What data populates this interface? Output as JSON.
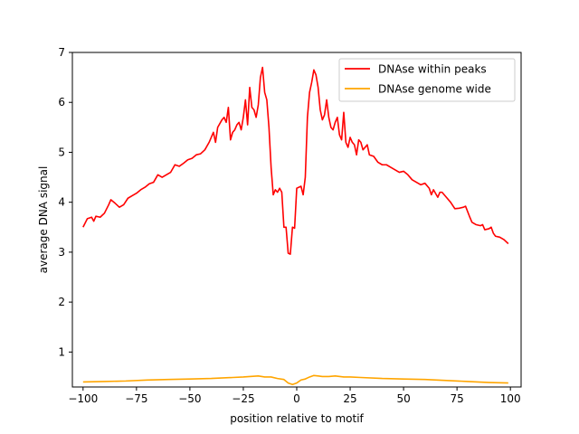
{
  "chart_data": {
    "type": "line",
    "title": "",
    "xlabel": "position relative to motif",
    "ylabel": "average DNA signal",
    "xlim": [
      -105,
      105
    ],
    "ylim": [
      0.3,
      7
    ],
    "xticks": [
      -100,
      -75,
      -50,
      -25,
      0,
      25,
      50,
      75,
      100
    ],
    "xtick_labels": [
      "−100",
      "−75",
      "−50",
      "−25",
      "0",
      "25",
      "50",
      "75",
      "100"
    ],
    "yticks": [
      1,
      2,
      3,
      4,
      5,
      6,
      7
    ],
    "ytick_labels": [
      "1",
      "2",
      "3",
      "4",
      "5",
      "6",
      "7"
    ],
    "grid": false,
    "legend_position": "top-right",
    "series": [
      {
        "name": "DNAse within peaks",
        "color": "#ff0000",
        "points": [
          [
            -100,
            3.5
          ],
          [
            -98,
            3.67
          ],
          [
            -96,
            3.7
          ],
          [
            -95,
            3.62
          ],
          [
            -94,
            3.72
          ],
          [
            -92,
            3.7
          ],
          [
            -90,
            3.78
          ],
          [
            -88,
            3.95
          ],
          [
            -87,
            4.05
          ],
          [
            -85,
            3.98
          ],
          [
            -83,
            3.9
          ],
          [
            -81,
            3.95
          ],
          [
            -79,
            4.08
          ],
          [
            -77,
            4.13
          ],
          [
            -75,
            4.18
          ],
          [
            -73,
            4.25
          ],
          [
            -71,
            4.3
          ],
          [
            -69,
            4.37
          ],
          [
            -67,
            4.4
          ],
          [
            -65,
            4.55
          ],
          [
            -63,
            4.5
          ],
          [
            -61,
            4.55
          ],
          [
            -59,
            4.6
          ],
          [
            -57,
            4.75
          ],
          [
            -55,
            4.72
          ],
          [
            -53,
            4.78
          ],
          [
            -51,
            4.85
          ],
          [
            -49,
            4.88
          ],
          [
            -47,
            4.95
          ],
          [
            -45,
            4.97
          ],
          [
            -43,
            5.05
          ],
          [
            -41,
            5.2
          ],
          [
            -39,
            5.4
          ],
          [
            -38,
            5.2
          ],
          [
            -37,
            5.5
          ],
          [
            -35,
            5.65
          ],
          [
            -34,
            5.7
          ],
          [
            -33,
            5.6
          ],
          [
            -32,
            5.9
          ],
          [
            -31,
            5.25
          ],
          [
            -30,
            5.4
          ],
          [
            -29,
            5.45
          ],
          [
            -28,
            5.55
          ],
          [
            -27,
            5.6
          ],
          [
            -26,
            5.45
          ],
          [
            -25,
            5.7
          ],
          [
            -24,
            6.05
          ],
          [
            -23,
            5.55
          ],
          [
            -22,
            6.3
          ],
          [
            -21,
            5.9
          ],
          [
            -20,
            5.85
          ],
          [
            -19,
            5.7
          ],
          [
            -18,
            5.95
          ],
          [
            -17,
            6.5
          ],
          [
            -16,
            6.7
          ],
          [
            -15,
            6.2
          ],
          [
            -14,
            6.05
          ],
          [
            -13,
            5.5
          ],
          [
            -12,
            4.7
          ],
          [
            -11,
            4.15
          ],
          [
            -10,
            4.25
          ],
          [
            -9,
            4.2
          ],
          [
            -8,
            4.28
          ],
          [
            -7,
            4.2
          ],
          [
            -6,
            3.5
          ],
          [
            -5,
            3.5
          ],
          [
            -4,
            2.98
          ],
          [
            -3,
            2.96
          ],
          [
            -2,
            3.5
          ],
          [
            -1,
            3.48
          ],
          [
            0,
            4.28
          ],
          [
            1,
            4.3
          ],
          [
            2,
            4.32
          ],
          [
            3,
            4.15
          ],
          [
            4,
            4.5
          ],
          [
            5,
            5.7
          ],
          [
            6,
            6.2
          ],
          [
            7,
            6.4
          ],
          [
            8,
            6.65
          ],
          [
            9,
            6.55
          ],
          [
            10,
            6.3
          ],
          [
            11,
            5.85
          ],
          [
            12,
            5.65
          ],
          [
            13,
            5.75
          ],
          [
            14,
            6.05
          ],
          [
            15,
            5.7
          ],
          [
            16,
            5.5
          ],
          [
            17,
            5.45
          ],
          [
            18,
            5.6
          ],
          [
            19,
            5.7
          ],
          [
            20,
            5.35
          ],
          [
            21,
            5.25
          ],
          [
            22,
            5.8
          ],
          [
            23,
            5.2
          ],
          [
            24,
            5.1
          ],
          [
            25,
            5.3
          ],
          [
            26,
            5.2
          ],
          [
            27,
            5.15
          ],
          [
            28,
            4.95
          ],
          [
            29,
            5.25
          ],
          [
            30,
            5.2
          ],
          [
            31,
            5.05
          ],
          [
            32,
            5.1
          ],
          [
            33,
            5.15
          ],
          [
            34,
            4.95
          ],
          [
            36,
            4.92
          ],
          [
            38,
            4.8
          ],
          [
            40,
            4.75
          ],
          [
            42,
            4.75
          ],
          [
            44,
            4.7
          ],
          [
            46,
            4.65
          ],
          [
            48,
            4.6
          ],
          [
            50,
            4.62
          ],
          [
            52,
            4.55
          ],
          [
            54,
            4.45
          ],
          [
            56,
            4.4
          ],
          [
            58,
            4.35
          ],
          [
            60,
            4.38
          ],
          [
            62,
            4.28
          ],
          [
            63,
            4.15
          ],
          [
            64,
            4.25
          ],
          [
            66,
            4.1
          ],
          [
            67,
            4.2
          ],
          [
            68,
            4.2
          ],
          [
            70,
            4.1
          ],
          [
            72,
            4.0
          ],
          [
            74,
            3.87
          ],
          [
            76,
            3.88
          ],
          [
            78,
            3.9
          ],
          [
            79,
            3.92
          ],
          [
            81,
            3.7
          ],
          [
            82,
            3.6
          ],
          [
            84,
            3.55
          ],
          [
            86,
            3.53
          ],
          [
            87,
            3.55
          ],
          [
            88,
            3.45
          ],
          [
            90,
            3.47
          ],
          [
            91,
            3.5
          ],
          [
            92,
            3.38
          ],
          [
            93,
            3.32
          ],
          [
            95,
            3.3
          ],
          [
            97,
            3.25
          ],
          [
            99,
            3.17
          ]
        ]
      },
      {
        "name": "DNAse genome wide",
        "color": "#ffa500",
        "points": [
          [
            -100,
            0.4
          ],
          [
            -90,
            0.41
          ],
          [
            -80,
            0.42
          ],
          [
            -70,
            0.44
          ],
          [
            -60,
            0.45
          ],
          [
            -50,
            0.46
          ],
          [
            -40,
            0.47
          ],
          [
            -30,
            0.49
          ],
          [
            -25,
            0.5
          ],
          [
            -22,
            0.51
          ],
          [
            -18,
            0.52
          ],
          [
            -15,
            0.5
          ],
          [
            -12,
            0.5
          ],
          [
            -9,
            0.47
          ],
          [
            -6,
            0.45
          ],
          [
            -4,
            0.38
          ],
          [
            -2,
            0.35
          ],
          [
            0,
            0.38
          ],
          [
            2,
            0.44
          ],
          [
            4,
            0.46
          ],
          [
            6,
            0.5
          ],
          [
            8,
            0.53
          ],
          [
            10,
            0.52
          ],
          [
            12,
            0.51
          ],
          [
            15,
            0.51
          ],
          [
            18,
            0.52
          ],
          [
            22,
            0.5
          ],
          [
            25,
            0.5
          ],
          [
            30,
            0.49
          ],
          [
            40,
            0.47
          ],
          [
            50,
            0.46
          ],
          [
            60,
            0.45
          ],
          [
            70,
            0.43
          ],
          [
            80,
            0.41
          ],
          [
            90,
            0.39
          ],
          [
            99,
            0.38
          ]
        ]
      }
    ]
  }
}
